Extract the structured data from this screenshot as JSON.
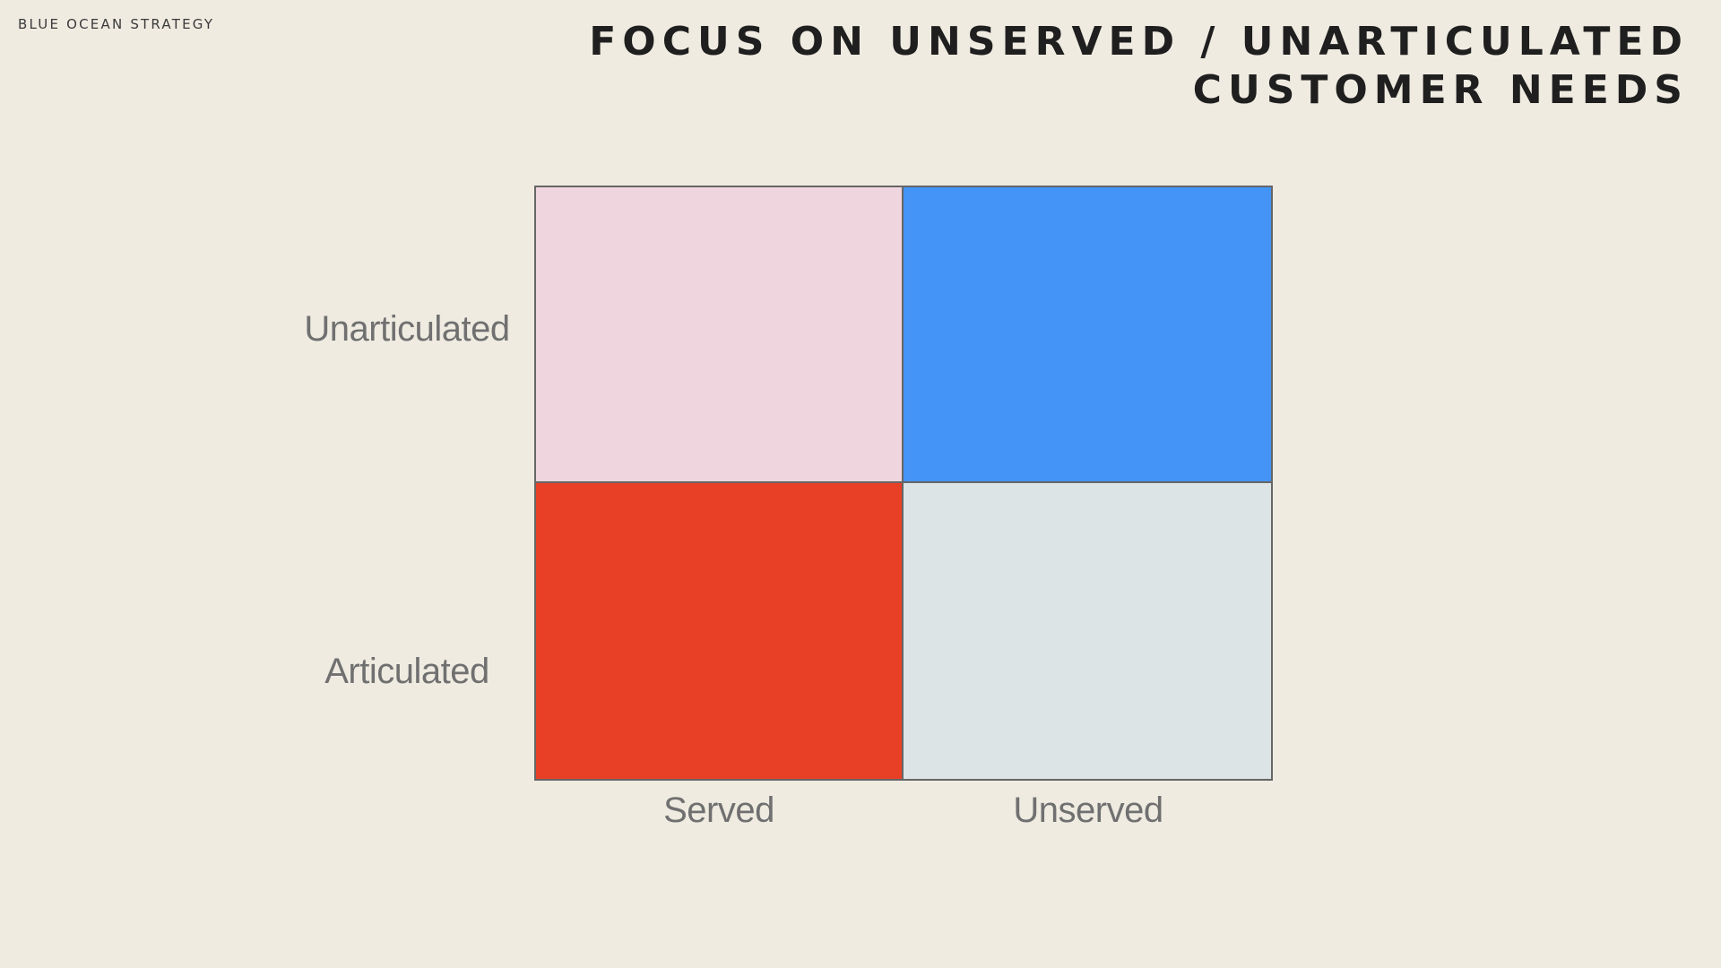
{
  "header": {
    "kicker": "BLUE OCEAN STRATEGY",
    "title_line1": "FOCUS ON UNSERVED / UNARTICULATED",
    "title_line2": "CUSTOMER NEEDS"
  },
  "matrix": {
    "y_axis": [
      "Unarticulated",
      "Articulated"
    ],
    "x_axis": [
      "Served",
      "Unserved"
    ],
    "cells": [
      {
        "row": "Unarticulated",
        "col": "Served",
        "color": "#efd5de"
      },
      {
        "row": "Unarticulated",
        "col": "Unserved",
        "color": "#4394f6"
      },
      {
        "row": "Articulated",
        "col": "Served",
        "color": "#e84026"
      },
      {
        "row": "Articulated",
        "col": "Unserved",
        "color": "#dde4e6"
      }
    ]
  },
  "colors": {
    "background": "#efebe1",
    "border": "#666666",
    "label": "#707070"
  }
}
